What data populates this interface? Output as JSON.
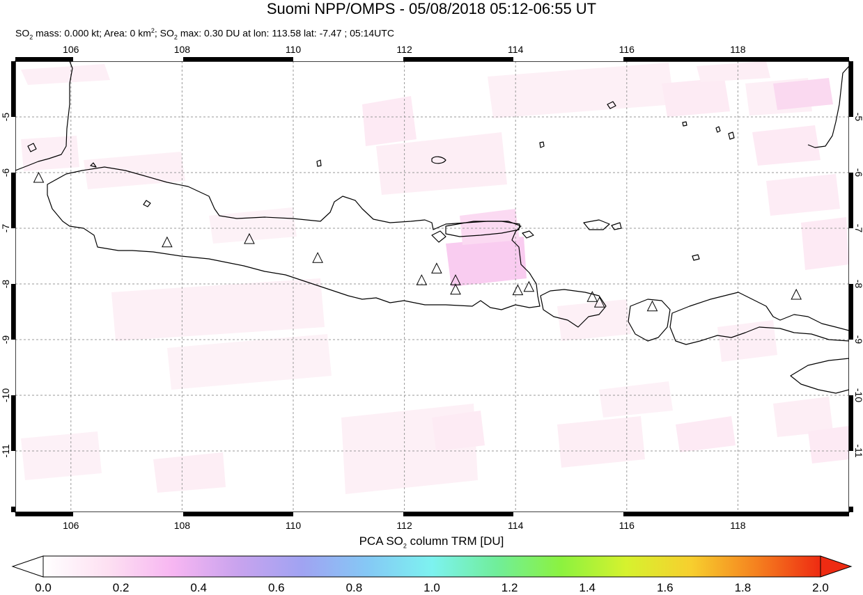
{
  "title": "Suomi NPP/OMPS - 05/08/2018 05:12-06:55 UT",
  "subtitle": {
    "p1": "SO",
    "p1sub": "2",
    "p2": " mass: 0.000 kt; Area: 0 km",
    "p2sup": "2",
    "p3": "; SO",
    "p3sub": "2",
    "p4": " max: 0.30 DU at lon: 113.58 lat: -7.47 ; 05:14UTC"
  },
  "map": {
    "lon_range": [
      105,
      120
    ],
    "lat_range": [
      -12.1,
      -4.0
    ],
    "lon_ticks": [
      "106",
      "108",
      "110",
      "112",
      "114",
      "116",
      "118"
    ],
    "lat_ticks": [
      "-5",
      "-6",
      "-7",
      "-8",
      "-9",
      "-10",
      "-11"
    ],
    "grid": "dashed",
    "volcano_marker": "triangle-outline-icon",
    "volcanoes": [
      {
        "lon": 105.42,
        "lat": -6.1
      },
      {
        "lon": 107.73,
        "lat": -7.26
      },
      {
        "lon": 109.21,
        "lat": -7.2
      },
      {
        "lon": 110.44,
        "lat": -7.54
      },
      {
        "lon": 112.31,
        "lat": -7.94
      },
      {
        "lon": 112.58,
        "lat": -7.73
      },
      {
        "lon": 112.92,
        "lat": -7.94
      },
      {
        "lon": 112.92,
        "lat": -8.11
      },
      {
        "lon": 114.04,
        "lat": -8.12
      },
      {
        "lon": 114.24,
        "lat": -8.06
      },
      {
        "lon": 115.38,
        "lat": -8.24
      },
      {
        "lon": 115.51,
        "lat": -8.34
      },
      {
        "lon": 116.46,
        "lat": -8.41
      },
      {
        "lon": 119.05,
        "lat": -8.2
      }
    ]
  },
  "colorbar": {
    "label_a": "PCA SO",
    "label_sub": "2",
    "label_b": " column TRM [DU]",
    "ticks": [
      "0.0",
      "0.2",
      "0.4",
      "0.6",
      "0.8",
      "1.0",
      "1.2",
      "1.4",
      "1.6",
      "1.8",
      "2.0"
    ],
    "range": [
      0.0,
      2.0
    ],
    "colors": [
      "#ffffff",
      "#fde0f2",
      "#f7b6f2",
      "#c9a3ee",
      "#a0a3f2",
      "#85c8f5",
      "#7df2f0",
      "#70ee9a",
      "#8cf23f",
      "#d6f22e",
      "#f7cf2e",
      "#f5821f",
      "#ee2b12"
    ]
  }
}
